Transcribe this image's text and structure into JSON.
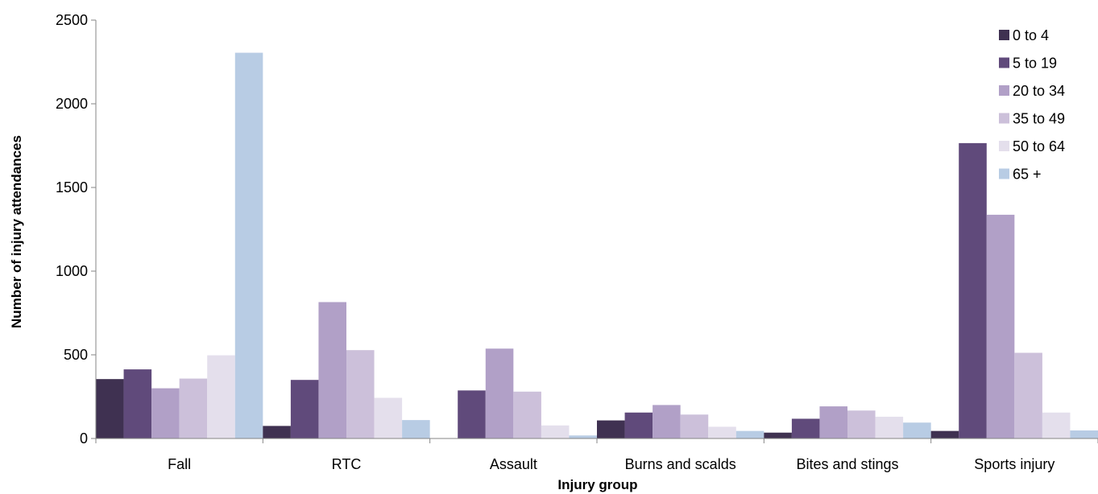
{
  "chart_data": {
    "type": "bar",
    "title": "",
    "xlabel": "Injury group",
    "ylabel": "Number of injury attendances",
    "ylim": [
      0,
      2500
    ],
    "yticks": [
      "0",
      "500",
      "1000",
      "1500",
      "2000",
      "2500"
    ],
    "grid": false,
    "legend_position": "top-right",
    "categories": [
      "Fall",
      "RTC",
      "Assault",
      "Burns and scalds",
      "Bites and stings",
      "Sports injury"
    ],
    "series": [
      {
        "name": "0 to 4",
        "color": "#3f3151",
        "values": [
          355,
          75,
          0,
          108,
          35,
          45
        ]
      },
      {
        "name": "5 to 19",
        "color": "#604a7b",
        "values": [
          413,
          350,
          287,
          155,
          118,
          1765
        ]
      },
      {
        "name": "20 to 34",
        "color": "#b1a0c7",
        "values": [
          300,
          815,
          537,
          200,
          192,
          1337
        ]
      },
      {
        "name": "35 to 49",
        "color": "#ccc0da",
        "values": [
          358,
          528,
          280,
          143,
          167,
          512
        ]
      },
      {
        "name": "50 to 64",
        "color": "#e4dfec",
        "values": [
          497,
          243,
          78,
          70,
          130,
          155
        ]
      },
      {
        "name": "65 +",
        "color": "#b8cce4",
        "values": [
          2305,
          110,
          18,
          45,
          95,
          48
        ]
      }
    ]
  }
}
